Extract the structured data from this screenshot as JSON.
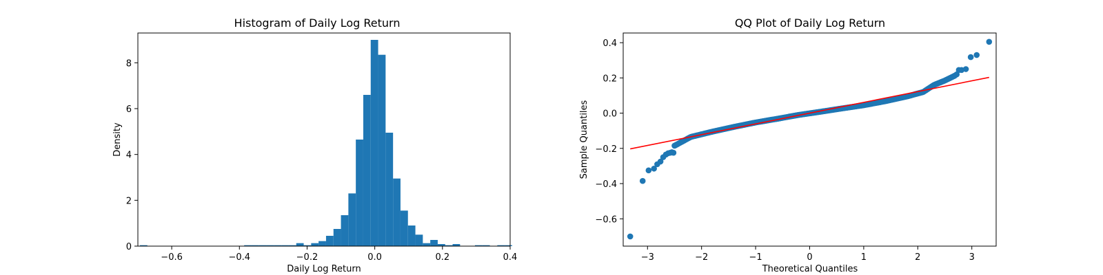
{
  "chart_data": [
    {
      "type": "bar",
      "subtype": "histogram",
      "title": "Histogram of Daily Log Return",
      "xlabel": "Daily Log Return",
      "ylabel": "Density",
      "xlim": [
        -0.7,
        0.4
      ],
      "ylim": [
        0,
        9.3
      ],
      "xticks": [
        -0.6,
        -0.4,
        -0.2,
        0.0,
        0.2,
        0.4
      ],
      "xtick_labels": [
        "−0.6",
        "−0.4",
        "−0.2",
        "0.0",
        "0.2",
        "0.4"
      ],
      "yticks": [
        0,
        2,
        4,
        6,
        8
      ],
      "ytick_labels": [
        "0",
        "2",
        "4",
        "6",
        "8"
      ],
      "color": "#1f77b4",
      "bin_width": 0.022,
      "bins": [
        {
          "x0": -0.694,
          "height": 0.04
        },
        {
          "x0": -0.386,
          "height": 0.04
        },
        {
          "x0": -0.364,
          "height": 0.04
        },
        {
          "x0": -0.342,
          "height": 0.04
        },
        {
          "x0": -0.32,
          "height": 0.04
        },
        {
          "x0": -0.298,
          "height": 0.04
        },
        {
          "x0": -0.276,
          "height": 0.04
        },
        {
          "x0": -0.254,
          "height": 0.04
        },
        {
          "x0": -0.232,
          "height": 0.13
        },
        {
          "x0": -0.21,
          "height": 0.04
        },
        {
          "x0": -0.188,
          "height": 0.13
        },
        {
          "x0": -0.166,
          "height": 0.22
        },
        {
          "x0": -0.144,
          "height": 0.45
        },
        {
          "x0": -0.122,
          "height": 0.75
        },
        {
          "x0": -0.1,
          "height": 1.35
        },
        {
          "x0": -0.078,
          "height": 2.3
        },
        {
          "x0": -0.056,
          "height": 4.65
        },
        {
          "x0": -0.034,
          "height": 6.6
        },
        {
          "x0": -0.012,
          "height": 9.0
        },
        {
          "x0": 0.01,
          "height": 8.35
        },
        {
          "x0": 0.032,
          "height": 4.95
        },
        {
          "x0": 0.054,
          "height": 2.95
        },
        {
          "x0": 0.076,
          "height": 1.55
        },
        {
          "x0": 0.098,
          "height": 0.9
        },
        {
          "x0": 0.12,
          "height": 0.5
        },
        {
          "x0": 0.142,
          "height": 0.13
        },
        {
          "x0": 0.164,
          "height": 0.27
        },
        {
          "x0": 0.186,
          "height": 0.09
        },
        {
          "x0": 0.208,
          "height": 0.04
        },
        {
          "x0": 0.23,
          "height": 0.09
        },
        {
          "x0": 0.296,
          "height": 0.04
        },
        {
          "x0": 0.318,
          "height": 0.04
        },
        {
          "x0": 0.362,
          "height": 0.04
        },
        {
          "x0": 0.384,
          "height": 0.04
        }
      ]
    },
    {
      "type": "scatter",
      "subtype": "qq-plot",
      "title": "QQ Plot of Daily Log Return",
      "xlabel": "Theoretical Quantiles",
      "ylabel": "Sample Quantiles",
      "xlim": [
        -3.45,
        3.45
      ],
      "ylim": [
        -0.755,
        0.455
      ],
      "xticks": [
        -3,
        -2,
        -1,
        0,
        1,
        2,
        3
      ],
      "xtick_labels": [
        "−3",
        "−2",
        "−1",
        "0",
        "1",
        "2",
        "3"
      ],
      "yticks": [
        -0.6,
        -0.4,
        -0.2,
        0.0,
        0.2,
        0.4
      ],
      "ytick_labels": [
        "−0.6",
        "−0.4",
        "−0.2",
        "0.0",
        "0.2",
        "0.4"
      ],
      "point_color": "#1f77b4",
      "line_color": "#ff0000",
      "reference_line": {
        "x": [
          -3.32,
          3.32
        ],
        "y": [
          -0.203,
          0.203
        ]
      },
      "tail_points": {
        "x": [
          -3.32,
          -3.09,
          -2.98,
          -2.88,
          -2.82,
          -2.76,
          -2.71,
          -2.66,
          -2.62,
          -2.58,
          -2.55,
          -2.52,
          2.72,
          2.76,
          2.81,
          2.89,
          2.98,
          3.09,
          3.32
        ],
        "y": [
          -0.7,
          -0.385,
          -0.325,
          -0.315,
          -0.29,
          -0.275,
          -0.25,
          -0.235,
          -0.228,
          -0.225,
          -0.222,
          -0.225,
          0.22,
          0.245,
          0.245,
          0.25,
          0.318,
          0.33,
          0.405
        ]
      },
      "body_curve": {
        "x": [
          -2.5,
          -2.2,
          -1.8,
          -1.4,
          -1.0,
          -0.6,
          -0.2,
          0.2,
          0.6,
          1.0,
          1.4,
          1.8,
          2.1,
          2.3,
          2.5,
          2.7
        ],
        "y": [
          -0.185,
          -0.135,
          -0.105,
          -0.078,
          -0.053,
          -0.032,
          -0.01,
          0.008,
          0.027,
          0.045,
          0.068,
          0.095,
          0.12,
          0.16,
          0.185,
          0.215
        ]
      }
    }
  ]
}
